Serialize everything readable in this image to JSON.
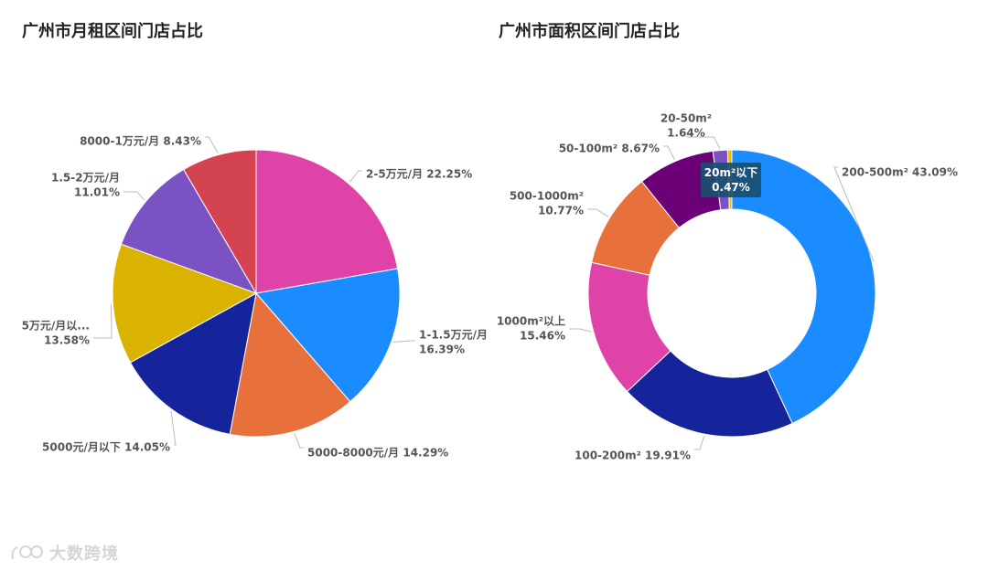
{
  "colors": {
    "magenta": "#e043a8",
    "blue": "#1a8cff",
    "orange": "#e8703a",
    "navy": "#15249a",
    "yellow": "#d9b300",
    "purple": "#7a52c4",
    "red": "#d44450",
    "deep_purple": "#6b0077",
    "gold": "#e8c000",
    "tooltip_bg": "#1a4f72"
  },
  "chart_data": [
    {
      "type": "pie",
      "title": "广州市月租区间门店占比",
      "slices": [
        {
          "name": "2-5万元/月",
          "value": 22.25,
          "label": "2-5万元/月 22.25%",
          "color": "#e043a8"
        },
        {
          "name": "1-1.5万元/月",
          "value": 16.39,
          "label": [
            "1-1.5万元/月",
            "16.39%"
          ],
          "color": "#1a8cff"
        },
        {
          "name": "5000-8000元/月",
          "value": 14.29,
          "label": "5000-8000元/月 14.29%",
          "color": "#e8703a"
        },
        {
          "name": "5000元/月以下",
          "value": 14.05,
          "label": "5000元/月以下 14.05%",
          "color": "#15249a"
        },
        {
          "name": "5万元/月以...",
          "value": 13.58,
          "label": [
            "5万元/月以...",
            "13.58%"
          ],
          "color": "#d9b300"
        },
        {
          "name": "1.5-2万元/月",
          "value": 11.01,
          "label": [
            "1.5-2万元/月",
            "11.01%"
          ],
          "color": "#7a52c4"
        },
        {
          "name": "8000-1万元/月",
          "value": 8.43,
          "label": "8000-1万元/月 8.43%",
          "color": "#d44450"
        }
      ]
    },
    {
      "type": "pie",
      "variant": "donut",
      "title": "广州市面积区间门店占比",
      "slices": [
        {
          "name": "200-500m²",
          "value": 43.09,
          "label": "200-500m² 43.09%",
          "color": "#1a8cff"
        },
        {
          "name": "100-200m²",
          "value": 19.91,
          "label": "100-200m² 19.91%",
          "color": "#15249a"
        },
        {
          "name": "1000m²以上",
          "value": 15.46,
          "label": [
            "1000m²以上",
            "15.46%"
          ],
          "color": "#e043a8"
        },
        {
          "name": "500-1000m²",
          "value": 10.77,
          "label": [
            "500-1000m²",
            "10.77%"
          ],
          "color": "#e8703a"
        },
        {
          "name": "50-100m²",
          "value": 8.67,
          "label": "50-100m² 8.67%",
          "color": "#6b0077"
        },
        {
          "name": "20-50m²",
          "value": 1.64,
          "label": [
            "20-50m²",
            "1.64%"
          ],
          "color": "#7a52c4"
        },
        {
          "name": "20m²以下",
          "value": 0.47,
          "label": [
            "20m²以下",
            "0.47%"
          ],
          "color": "#e8c000",
          "highlighted": true
        }
      ]
    }
  ],
  "watermark": {
    "text": "大数跨境"
  }
}
